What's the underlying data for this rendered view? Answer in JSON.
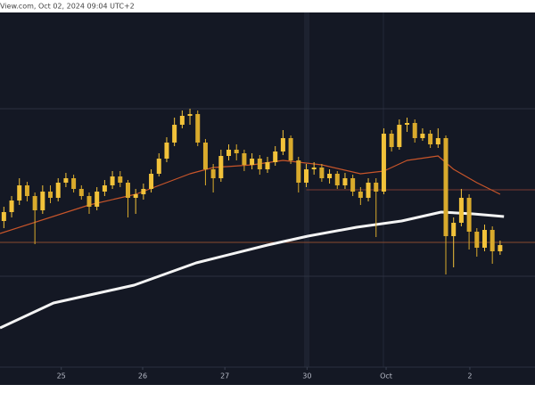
{
  "chart_data": {
    "type": "candlestick",
    "title": "View.com, Oct 02, 2024 09:04 UTC+2",
    "open": [
      41,
      43.5,
      46.75,
      51,
      48,
      44,
      49.25,
      47.5,
      51.75,
      53,
      50,
      48,
      45,
      49.25,
      51,
      53.5,
      51.75,
      47.5,
      48.5,
      50,
      54.25,
      58.5,
      63,
      68,
      70.5,
      71,
      63,
      55.5,
      53,
      59.25,
      61,
      60,
      56.75,
      58.5,
      55.5,
      57.5,
      60.5,
      64.25,
      58,
      51.75,
      55.5,
      56,
      53,
      54.25,
      51,
      53,
      49.25,
      47.5,
      51.75,
      49.25,
      65.5,
      61.75,
      68,
      68.5,
      64.25,
      65.5,
      62.5,
      64.25,
      36.75,
      40.5,
      47.5,
      38,
      33.5,
      38.5,
      32.5
    ],
    "high": [
      45,
      48,
      53,
      52,
      49,
      51,
      51,
      53,
      54.5,
      54,
      51,
      49,
      50.5,
      52.5,
      55,
      55,
      52.5,
      50,
      51.5,
      55.5,
      60,
      64.5,
      70,
      72,
      72.5,
      72,
      64,
      57,
      61,
      62.5,
      62.5,
      61,
      60,
      59.5,
      59,
      62,
      66.5,
      65,
      59,
      57,
      57.5,
      57,
      55.5,
      55,
      54.5,
      54,
      50.5,
      53,
      53,
      67,
      66.5,
      69.5,
      70,
      69.5,
      67,
      66.5,
      67,
      65,
      42,
      50,
      48.5,
      39,
      40,
      39.5,
      35.5
    ],
    "low": [
      39,
      42,
      45.5,
      46.5,
      34.5,
      43,
      46,
      46.5,
      50.5,
      49,
      47,
      43,
      44,
      48,
      50,
      50.5,
      42,
      43,
      47,
      49,
      53.5,
      57.5,
      62,
      67,
      68,
      62,
      51,
      49,
      52,
      58,
      58,
      55,
      55.5,
      54,
      54.5,
      56.5,
      59.5,
      57,
      49,
      50.5,
      54,
      52,
      51.5,
      50,
      50,
      48,
      45.5,
      46.5,
      36.5,
      48.5,
      60.5,
      61,
      66,
      63,
      63.5,
      61.5,
      61.5,
      26,
      28,
      39.5,
      33,
      31,
      32.5,
      29,
      31.5
    ],
    "close": [
      43.5,
      46.75,
      51,
      48,
      44,
      49.25,
      47.5,
      51.75,
      53,
      50,
      48,
      45,
      49.25,
      51,
      53.5,
      51.75,
      47.5,
      48.5,
      50,
      54.25,
      58.5,
      63,
      68,
      70.5,
      71,
      63,
      55.5,
      53,
      59.25,
      61,
      60,
      56.75,
      58.5,
      55.5,
      57.5,
      60.5,
      64.25,
      58,
      51.75,
      55.5,
      56,
      53,
      54.25,
      51,
      53,
      49.25,
      47.5,
      51.75,
      49.25,
      65.5,
      61.75,
      68,
      68.5,
      64.25,
      65.5,
      62.5,
      64.25,
      36.75,
      40.5,
      47.5,
      38,
      33.5,
      38.5,
      32.5,
      34.25
    ],
    "up_color": "#f2c23a",
    "down_color": "#d9aa2c",
    "ma_lines": [
      {
        "color": "#c8552a",
        "x": [
          -0.5,
          11,
          17,
          24,
          27,
          32,
          36,
          41,
          46,
          49,
          52,
          56,
          58,
          61,
          64
        ],
        "values": [
          37.5,
          45.5,
          48.5,
          54.25,
          56,
          56.75,
          58,
          56.75,
          54.25,
          55,
          58,
          59.25,
          55.5,
          51.75,
          48.5
        ]
      },
      {
        "color": "#f4f4f4",
        "x": [
          -0.5,
          6.4,
          16.8,
          24.8,
          34,
          39.2,
          45.5,
          51.3,
          56.4,
          60.5,
          64.5
        ],
        "values": [
          11,
          18,
          23,
          29.25,
          34.25,
          36.75,
          39.25,
          41,
          43.5,
          43,
          42.25
        ]
      }
    ],
    "levels": [
      {
        "value": 35,
        "color": "#8a4a2e",
        "x_start": -0.5
      },
      {
        "value": 49.75,
        "color": "#7a3a32",
        "x_start": 39
      },
      {
        "value": 72.5,
        "color": "#2c3140",
        "x_start": -0.5
      },
      {
        "value": 25.5,
        "color": "#2c3140",
        "x_start": -0.5
      }
    ],
    "xlim": [
      -0.5,
      68.5
    ],
    "ylim": [
      0,
      100
    ],
    "xticks": [
      {
        "value": 7.4,
        "label": "25"
      },
      {
        "value": 17.9,
        "label": "26"
      },
      {
        "value": 28.5,
        "label": "27"
      },
      {
        "value": 39.1,
        "label": "30"
      },
      {
        "value": 49.3,
        "label": "Oct"
      },
      {
        "value": 60.1,
        "label": "2"
      }
    ]
  }
}
